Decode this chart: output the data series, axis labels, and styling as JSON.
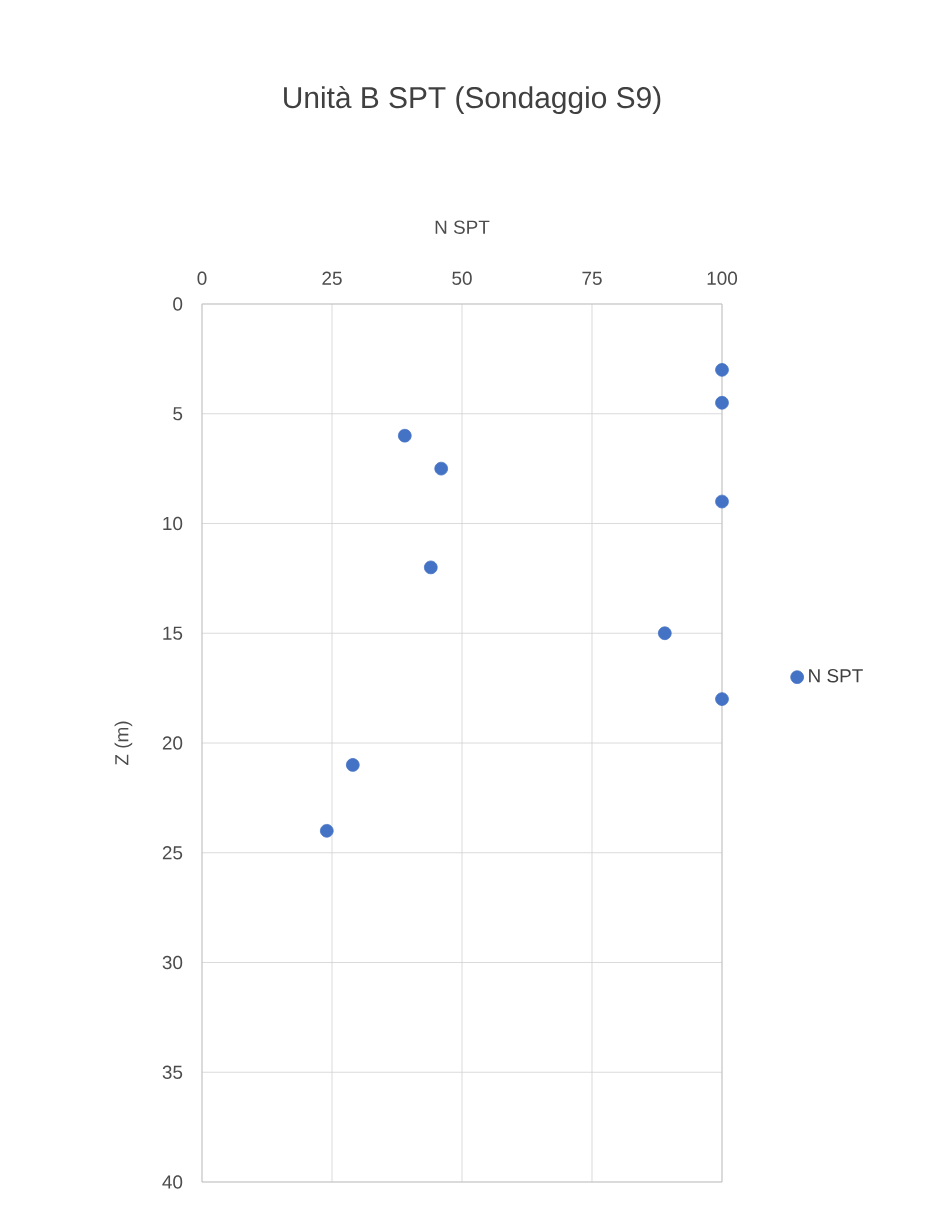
{
  "chart_data": {
    "type": "scatter",
    "title": "Unità B SPT (Sondaggio S9)",
    "xlabel": "N SPT",
    "ylabel": "Z (m)",
    "xlim": [
      0,
      100
    ],
    "xticks": [
      0,
      25,
      50,
      75,
      100
    ],
    "ylim": [
      40,
      0
    ],
    "yticks": [
      0,
      5,
      10,
      15,
      20,
      25,
      30,
      35,
      40
    ],
    "grid": true,
    "legend": "right",
    "series": [
      {
        "name": "N SPT",
        "color": "#4472c4",
        "x": [
          100,
          100,
          39,
          46,
          100,
          44,
          89,
          100,
          29,
          24
        ],
        "values": [
          3,
          4.5,
          6,
          7.5,
          9,
          12,
          15,
          18,
          21,
          24
        ]
      }
    ]
  }
}
